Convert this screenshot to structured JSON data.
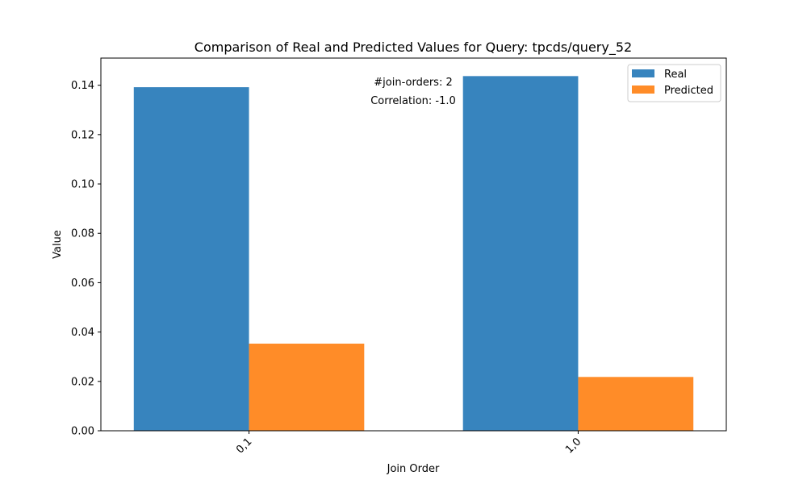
{
  "chart_data": {
    "type": "bar",
    "title": "Comparison of Real and Predicted Values for Query: tpcds/query_52",
    "xlabel": "Join Order",
    "ylabel": "Value",
    "categories": [
      "0,1",
      "1,0"
    ],
    "series": [
      {
        "name": "Real",
        "values": [
          0.1392,
          0.1437
        ],
        "color": "#3784be"
      },
      {
        "name": "Predicted",
        "values": [
          0.0353,
          0.0218
        ],
        "color": "#ff8c28"
      }
    ],
    "ylim": [
      0,
      0.151
    ],
    "yticks": [
      "0.00",
      "0.02",
      "0.04",
      "0.06",
      "0.08",
      "0.10",
      "0.12",
      "0.14"
    ],
    "xtick_rotation": 45,
    "grid": false,
    "legend_position": "top-right",
    "annotations": {
      "join_orders": "#join-orders: 2",
      "correlation": "Correlation: -1.0"
    }
  }
}
